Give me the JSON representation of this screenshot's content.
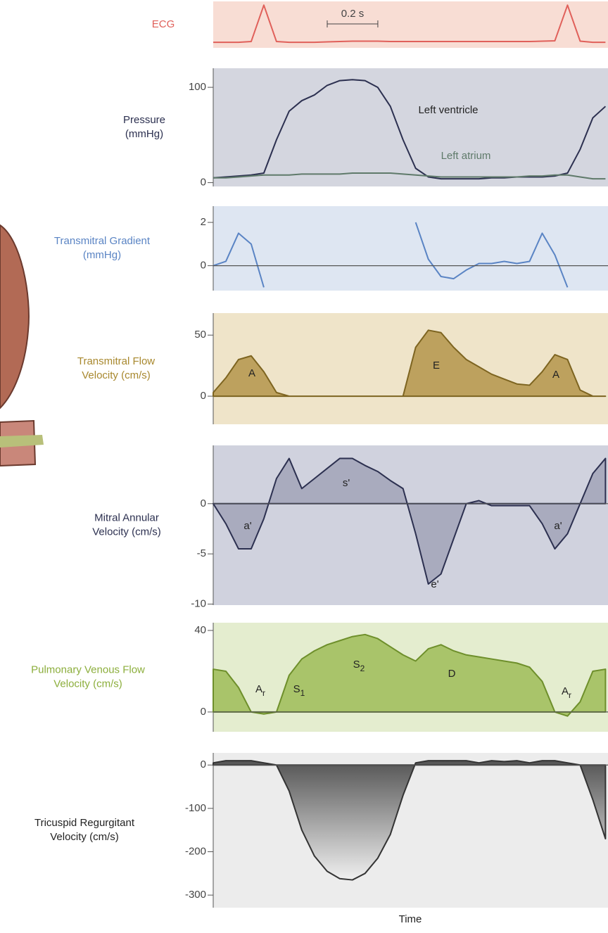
{
  "chart_data": [
    {
      "type": "line",
      "label": [
        "ECG"
      ],
      "label_color": "#e0605a",
      "background": "#f8ddd4",
      "scale_bar": {
        "label": "0.2 s",
        "value": 0.2
      },
      "x": [
        0,
        0.05,
        0.1,
        0.15,
        0.2,
        0.25,
        0.3,
        0.35,
        0.4,
        0.45,
        0.5,
        0.55,
        0.6,
        0.65,
        0.7,
        0.75,
        0.8,
        0.85,
        0.9,
        0.95,
        1,
        1.05,
        1.1,
        1.15,
        1.2,
        1.25,
        1.3,
        1.35,
        1.4,
        1.45,
        1.5,
        1.55
      ],
      "xlim": [
        0,
        1.56
      ],
      "ylim": [
        -0.15,
        1.1
      ],
      "series": [
        {
          "color": "#e0605a",
          "values": [
            0,
            0,
            0,
            0.02,
            1,
            0.02,
            0,
            0,
            0,
            0.01,
            0.02,
            0.03,
            0.03,
            0.03,
            0.02,
            0.02,
            0.02,
            0.02,
            0.02,
            0.02,
            0.02,
            0.02,
            0.02,
            0.02,
            0.02,
            0.02,
            0.03,
            0.04,
            1,
            0.03,
            0,
            0
          ]
        }
      ]
    },
    {
      "type": "line",
      "label": [
        "Pressure",
        "(mmHg)"
      ],
      "label_color": "#2c3050",
      "background": "#d4d6df",
      "x": [
        0,
        0.05,
        0.1,
        0.15,
        0.2,
        0.25,
        0.3,
        0.35,
        0.4,
        0.45,
        0.5,
        0.55,
        0.6,
        0.65,
        0.7,
        0.75,
        0.8,
        0.85,
        0.9,
        0.95,
        1,
        1.05,
        1.1,
        1.15,
        1.2,
        1.25,
        1.3,
        1.35,
        1.4,
        1.45,
        1.5,
        1.55
      ],
      "xlim": [
        0,
        1.56
      ],
      "ylim": [
        -4,
        120
      ],
      "yticks": [
        0,
        100
      ],
      "annotations": [
        {
          "text": "Left ventricle"
        },
        {
          "text": "Left atrium"
        }
      ],
      "series": [
        {
          "name": "Left ventricle",
          "color": "#2c3050",
          "values": [
            5,
            6,
            7,
            8,
            10,
            45,
            75,
            86,
            92,
            102,
            107,
            108,
            107,
            100,
            80,
            45,
            15,
            6,
            4,
            4,
            4,
            4,
            5,
            5,
            6,
            6,
            6,
            7,
            10,
            35,
            68,
            80
          ]
        },
        {
          "name": "Left atrium",
          "color": "#5f7a6a",
          "values": [
            5,
            5,
            6,
            7,
            8,
            8,
            8,
            9,
            9,
            9,
            9,
            10,
            10,
            10,
            10,
            9,
            8,
            7,
            6,
            6,
            6,
            6,
            6,
            6,
            6,
            7,
            7,
            8,
            8,
            6,
            4,
            4
          ]
        }
      ]
    },
    {
      "type": "line",
      "label": [
        "Transmitral Gradient",
        "(mmHg)"
      ],
      "label_color": "#5a84c4",
      "background": "#dee6f2",
      "zero_line": true,
      "x": [
        0,
        0.05,
        0.1,
        0.15,
        0.2,
        0.25,
        0.3,
        0.35,
        0.4,
        0.45,
        0.5,
        0.55,
        0.6,
        0.65,
        0.7,
        0.75,
        0.8,
        0.85,
        0.9,
        0.95,
        1,
        1.05,
        1.1,
        1.15,
        1.2,
        1.25,
        1.3,
        1.35,
        1.4,
        1.45,
        1.5,
        1.55
      ],
      "xlim": [
        0,
        1.56
      ],
      "ylim": [
        -1.15,
        2.75
      ],
      "yticks": [
        0,
        2
      ],
      "series": [
        {
          "color": "#5a84c4",
          "values": [
            0,
            0.2,
            1.5,
            1.0,
            -1,
            null,
            null,
            null,
            null,
            null,
            null,
            null,
            null,
            null,
            null,
            null,
            2.0,
            0.3,
            -0.5,
            -0.6,
            -0.2,
            0.1,
            0.1,
            0.2,
            0.1,
            0.2,
            1.5,
            0.5,
            -1,
            null,
            null,
            null
          ]
        }
      ]
    },
    {
      "type": "area",
      "label": [
        "Transmitral Flow",
        "Velocity (cm/s)"
      ],
      "label_color": "#a8882e",
      "background": "#efe4c9",
      "x": [
        0,
        0.05,
        0.1,
        0.15,
        0.2,
        0.25,
        0.3,
        0.35,
        0.4,
        0.45,
        0.5,
        0.55,
        0.6,
        0.65,
        0.7,
        0.75,
        0.8,
        0.85,
        0.9,
        0.95,
        1,
        1.05,
        1.1,
        1.15,
        1.2,
        1.25,
        1.3,
        1.35,
        1.4,
        1.45,
        1.5,
        1.55
      ],
      "xlim": [
        0,
        1.56
      ],
      "ylim": [
        -23,
        68
      ],
      "yticks": [
        0,
        50
      ],
      "annotations": [
        {
          "text": "A"
        },
        {
          "text": "E"
        },
        {
          "text": "A"
        }
      ],
      "series": [
        {
          "color": "#7d6420",
          "fill": "#bda15e",
          "values": [
            3,
            15,
            30,
            33,
            20,
            3,
            0,
            0,
            0,
            0,
            0,
            0,
            0,
            0,
            0,
            0,
            40,
            54,
            52,
            40,
            30,
            24,
            18,
            14,
            10,
            9,
            20,
            34,
            30,
            5,
            0,
            0
          ]
        }
      ]
    },
    {
      "type": "area",
      "label": [
        "Mitral Annular",
        "Velocity (cm/s)"
      ],
      "label_color": "#2c3050",
      "background": "#d0d2de",
      "zero_line": true,
      "x": [
        0,
        0.05,
        0.1,
        0.15,
        0.2,
        0.25,
        0.3,
        0.35,
        0.4,
        0.45,
        0.5,
        0.55,
        0.6,
        0.65,
        0.7,
        0.75,
        0.8,
        0.85,
        0.9,
        0.95,
        1,
        1.05,
        1.1,
        1.15,
        1.2,
        1.25,
        1.3,
        1.35,
        1.4,
        1.45,
        1.5,
        1.55
      ],
      "xlim": [
        0,
        1.56
      ],
      "ylim": [
        -10.1,
        5.8
      ],
      "yticks": [
        0,
        -5,
        -10
      ],
      "annotations": [
        {
          "text": "a'"
        },
        {
          "text": "s'"
        },
        {
          "text": "e'"
        },
        {
          "text": "a'"
        }
      ],
      "series": [
        {
          "color": "#2c3050",
          "fill": "#a9abbe",
          "values": [
            0,
            -2,
            -4.5,
            -4.5,
            -1.5,
            2.5,
            4.5,
            1.5,
            2.5,
            3.5,
            4.5,
            4.5,
            3.8,
            3.2,
            2.3,
            1.5,
            -3,
            -8,
            -7,
            -3.5,
            0,
            0.3,
            -0.2,
            -0.2,
            -0.2,
            -0.2,
            -2,
            -4.5,
            -3,
            0,
            3,
            4.5
          ]
        }
      ]
    },
    {
      "type": "area",
      "label": [
        "Pulmonary Venous Flow",
        "Velocity (cm/s)"
      ],
      "label_color": "#8cae3c",
      "background": "#e4edcf",
      "zero_line": true,
      "x": [
        0,
        0.05,
        0.1,
        0.15,
        0.2,
        0.25,
        0.3,
        0.35,
        0.4,
        0.45,
        0.5,
        0.55,
        0.6,
        0.65,
        0.7,
        0.75,
        0.8,
        0.85,
        0.9,
        0.95,
        1,
        1.05,
        1.1,
        1.15,
        1.2,
        1.25,
        1.3,
        1.35,
        1.4,
        1.45,
        1.5,
        1.55
      ],
      "xlim": [
        0,
        1.56
      ],
      "ylim": [
        -9.7,
        43.8
      ],
      "yticks": [
        0,
        40
      ],
      "annotations": [
        {
          "text": "A",
          "sub": "r"
        },
        {
          "text": "S",
          "sub": "1"
        },
        {
          "text": "S",
          "sub": "2"
        },
        {
          "text": "D"
        },
        {
          "text": "A",
          "sub": "r"
        }
      ],
      "series": [
        {
          "color": "#6e8f2b",
          "fill": "#a9c46a",
          "values": [
            21,
            20,
            12,
            0,
            -1,
            0,
            18,
            26,
            30,
            33,
            35,
            37,
            38,
            36,
            32,
            28,
            25,
            31,
            33,
            30,
            28,
            27,
            26,
            25,
            24,
            22,
            15,
            0,
            -2,
            5,
            20,
            21
          ]
        }
      ]
    },
    {
      "type": "area",
      "label": [
        "Tricuspid Regurgitant",
        "Velocity (cm/s)"
      ],
      "label_color": "#222222",
      "background": "#ececec",
      "zero_line": true,
      "xlabel": "Time",
      "x": [
        0,
        0.05,
        0.1,
        0.15,
        0.2,
        0.25,
        0.3,
        0.35,
        0.4,
        0.45,
        0.5,
        0.55,
        0.6,
        0.65,
        0.7,
        0.75,
        0.8,
        0.85,
        0.9,
        0.95,
        1,
        1.05,
        1.1,
        1.15,
        1.2,
        1.25,
        1.3,
        1.35,
        1.4,
        1.45,
        1.5,
        1.55
      ],
      "xlim": [
        0,
        1.56
      ],
      "ylim": [
        -329,
        28
      ],
      "yticks": [
        0,
        -100,
        -200,
        -300
      ],
      "series": [
        {
          "color": "#333333",
          "fill": "gradient",
          "values": [
            5,
            10,
            10,
            10,
            5,
            0,
            -60,
            -150,
            -210,
            -245,
            -262,
            -265,
            -250,
            -215,
            -160,
            -70,
            5,
            10,
            10,
            10,
            10,
            5,
            10,
            8,
            10,
            5,
            10,
            10,
            5,
            0,
            -80,
            -170
          ]
        }
      ]
    }
  ]
}
